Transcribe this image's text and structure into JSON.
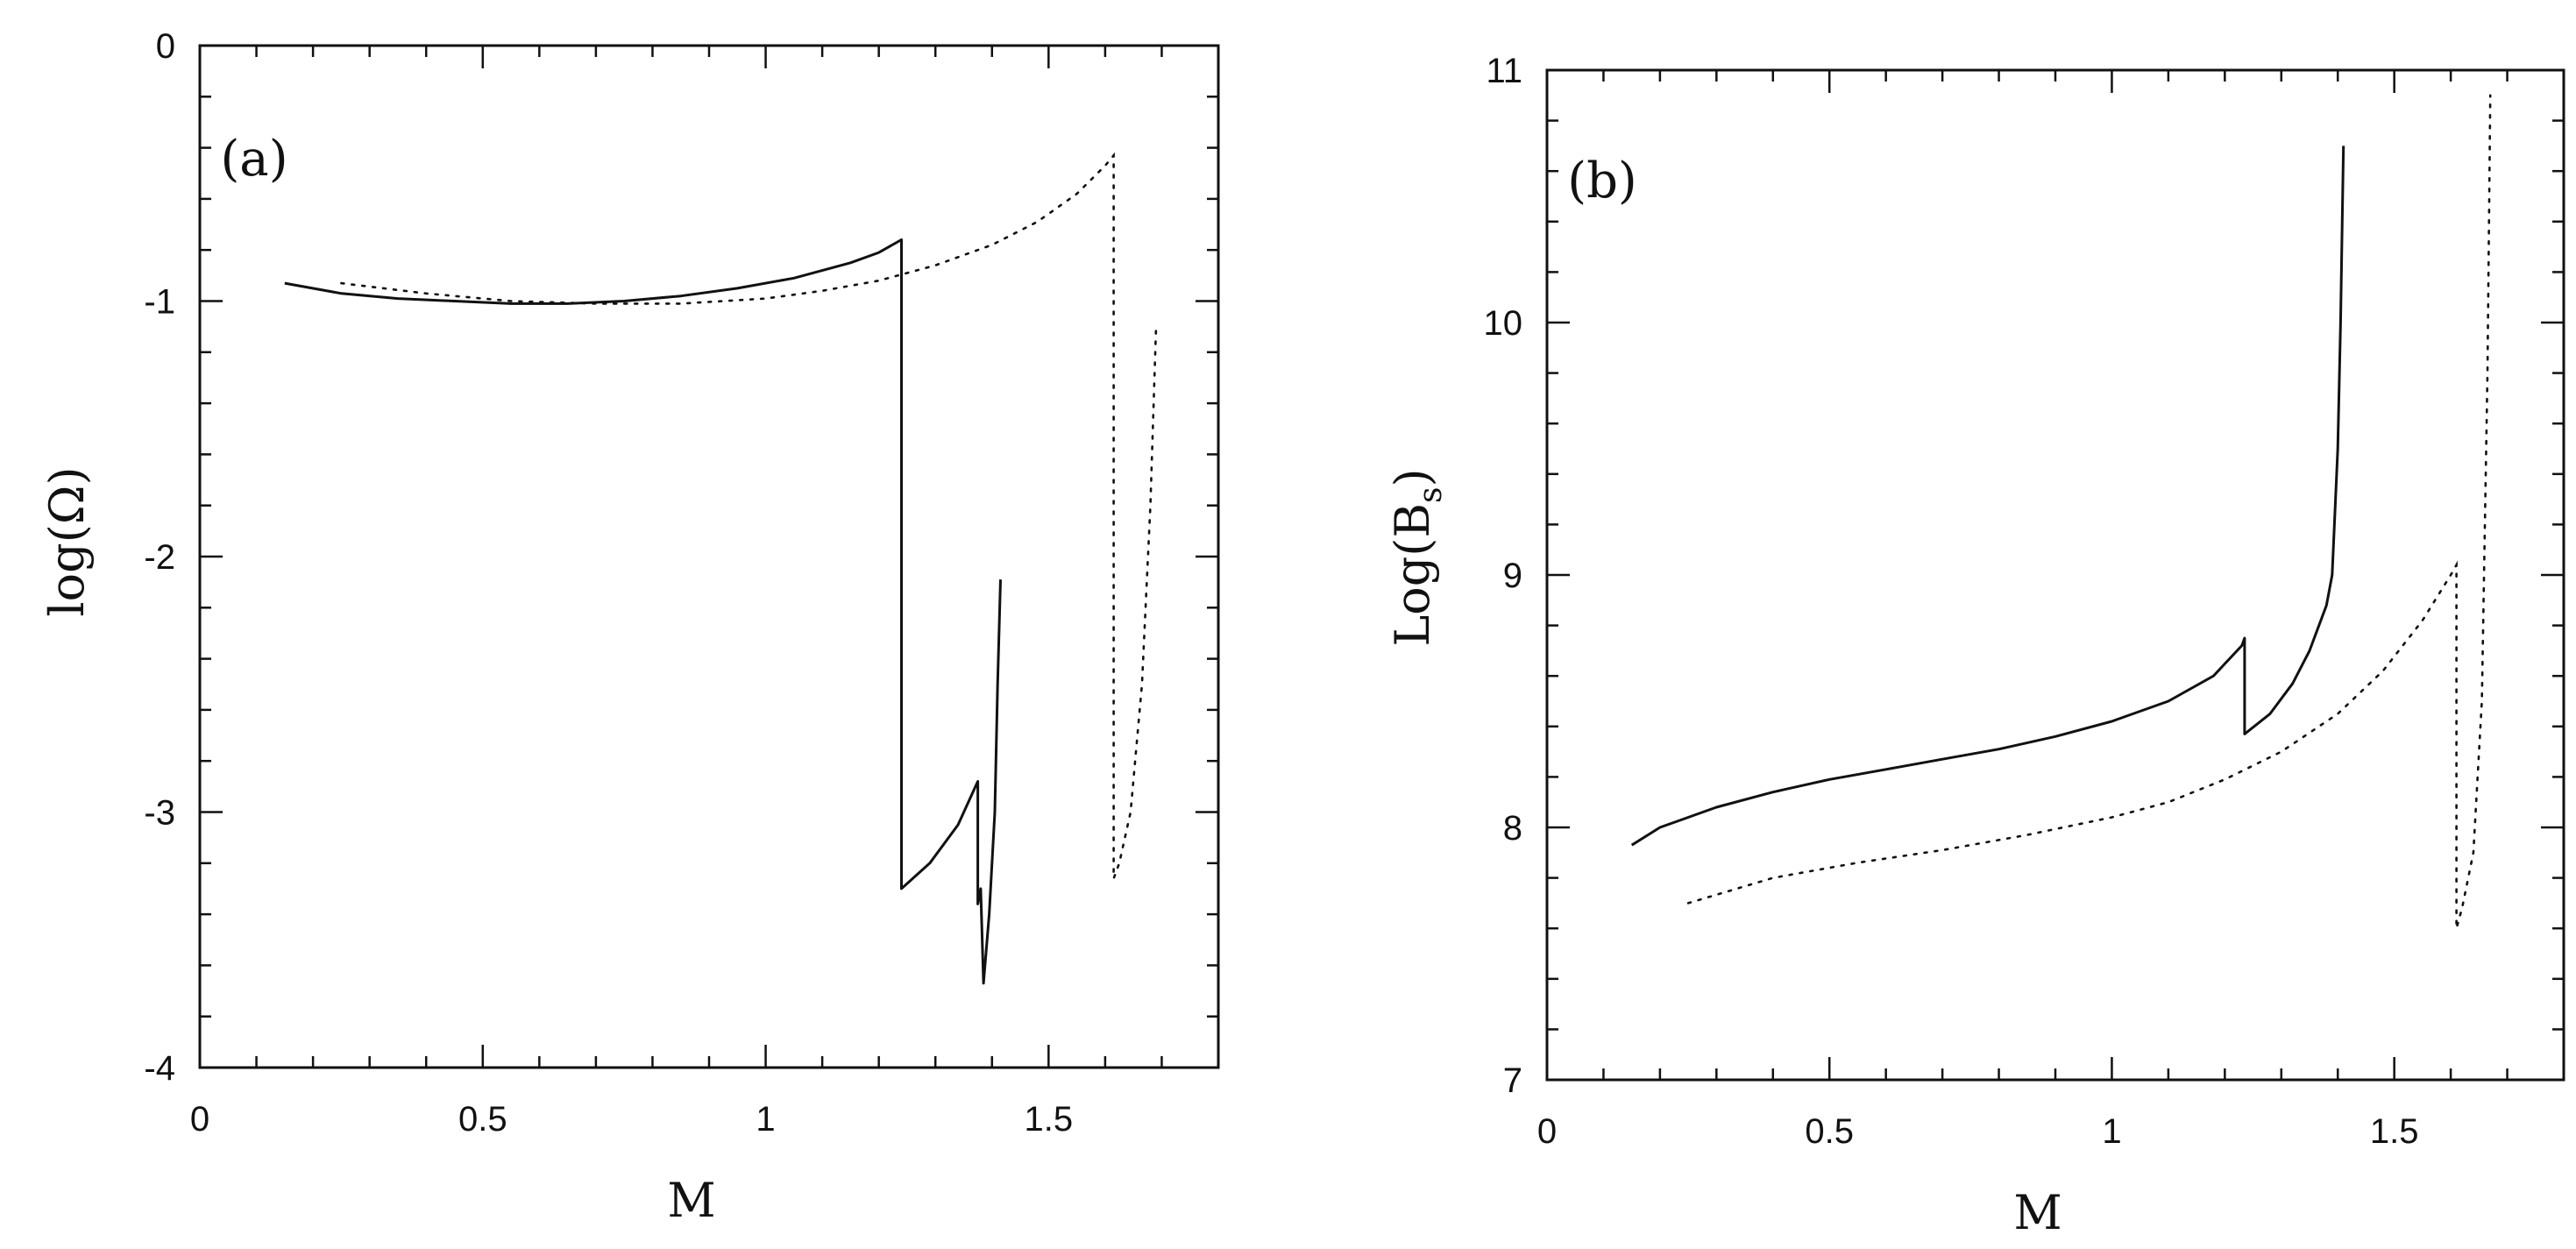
{
  "chart_data": [
    {
      "type": "line",
      "panel_label": "(a)",
      "xlabel": "M",
      "ylabel": "log(Ω)",
      "ylabel_parts": {
        "pre": "log(",
        "symbol": "Ω",
        "sub": "",
        "post": ")"
      },
      "xlim": [
        0,
        1.8
      ],
      "ylim": [
        -4,
        0
      ],
      "xticks": [
        0,
        0.5,
        1,
        1.5
      ],
      "xtick_labels": [
        "0",
        "0.5",
        "1",
        "1.5"
      ],
      "yticks": [
        -4,
        -3,
        -2,
        -1,
        0
      ],
      "ytick_labels": [
        "-4",
        "-3",
        "-2",
        "-1",
        "0"
      ],
      "x_minor_step": 0.1,
      "y_minor_step": 0.2,
      "series": [
        {
          "name": "solid",
          "style": "solid",
          "points": [
            [
              0.15,
              -0.93
            ],
            [
              0.25,
              -0.97
            ],
            [
              0.35,
              -0.99
            ],
            [
              0.45,
              -1.0
            ],
            [
              0.55,
              -1.01
            ],
            [
              0.65,
              -1.01
            ],
            [
              0.75,
              -1.0
            ],
            [
              0.85,
              -0.98
            ],
            [
              0.95,
              -0.95
            ],
            [
              1.05,
              -0.91
            ],
            [
              1.15,
              -0.85
            ],
            [
              1.2,
              -0.81
            ],
            [
              1.24,
              -0.76
            ],
            [
              1.24,
              -3.3
            ],
            [
              1.29,
              -3.2
            ],
            [
              1.34,
              -3.05
            ],
            [
              1.375,
              -2.88
            ],
            [
              1.375,
              -3.36
            ],
            [
              1.38,
              -3.3
            ],
            [
              1.385,
              -3.67
            ],
            [
              1.395,
              -3.4
            ],
            [
              1.405,
              -3.0
            ],
            [
              1.41,
              -2.5
            ],
            [
              1.415,
              -2.09
            ]
          ]
        },
        {
          "name": "dotted",
          "style": "dotted",
          "points": [
            [
              0.25,
              -0.93
            ],
            [
              0.4,
              -0.97
            ],
            [
              0.55,
              -1.0
            ],
            [
              0.7,
              -1.01
            ],
            [
              0.85,
              -1.01
            ],
            [
              1.0,
              -0.99
            ],
            [
              1.1,
              -0.96
            ],
            [
              1.2,
              -0.92
            ],
            [
              1.3,
              -0.86
            ],
            [
              1.4,
              -0.78
            ],
            [
              1.48,
              -0.69
            ],
            [
              1.55,
              -0.58
            ],
            [
              1.6,
              -0.47
            ],
            [
              1.615,
              -0.43
            ],
            [
              1.615,
              -3.26
            ],
            [
              1.625,
              -3.2
            ],
            [
              1.645,
              -3.0
            ],
            [
              1.665,
              -2.5
            ],
            [
              1.68,
              -1.8
            ],
            [
              1.69,
              -1.1
            ]
          ]
        }
      ]
    },
    {
      "type": "line",
      "panel_label": "(b)",
      "xlabel": "M",
      "ylabel": "Log(Bs)",
      "ylabel_parts": {
        "pre": "Log(",
        "symbol": "B",
        "sub": "s",
        "post": ")"
      },
      "xlim": [
        0,
        1.8
      ],
      "ylim": [
        7,
        11
      ],
      "xticks": [
        0,
        0.5,
        1,
        1.5
      ],
      "xtick_labels": [
        "0",
        "0.5",
        "1",
        "1.5"
      ],
      "yticks": [
        7,
        8,
        9,
        10,
        11
      ],
      "ytick_labels": [
        "7",
        "8",
        "9",
        "10",
        "11"
      ],
      "x_minor_step": 0.1,
      "y_minor_step": 0.2,
      "series": [
        {
          "name": "solid",
          "style": "solid",
          "points": [
            [
              0.15,
              7.93
            ],
            [
              0.2,
              8.0
            ],
            [
              0.3,
              8.08
            ],
            [
              0.4,
              8.14
            ],
            [
              0.5,
              8.19
            ],
            [
              0.6,
              8.23
            ],
            [
              0.7,
              8.27
            ],
            [
              0.8,
              8.31
            ],
            [
              0.9,
              8.36
            ],
            [
              1.0,
              8.42
            ],
            [
              1.1,
              8.5
            ],
            [
              1.18,
              8.6
            ],
            [
              1.23,
              8.72
            ],
            [
              1.235,
              8.75
            ],
            [
              1.235,
              8.37
            ],
            [
              1.28,
              8.45
            ],
            [
              1.32,
              8.57
            ],
            [
              1.35,
              8.7
            ],
            [
              1.37,
              8.82
            ],
            [
              1.38,
              8.88
            ],
            [
              1.39,
              9.0
            ],
            [
              1.4,
              9.5
            ],
            [
              1.405,
              10.0
            ],
            [
              1.41,
              10.7
            ]
          ]
        },
        {
          "name": "dotted",
          "style": "dotted",
          "points": [
            [
              0.25,
              7.7
            ],
            [
              0.4,
              7.8
            ],
            [
              0.55,
              7.86
            ],
            [
              0.7,
              7.91
            ],
            [
              0.85,
              7.97
            ],
            [
              1.0,
              8.04
            ],
            [
              1.1,
              8.1
            ],
            [
              1.2,
              8.19
            ],
            [
              1.3,
              8.3
            ],
            [
              1.4,
              8.45
            ],
            [
              1.48,
              8.62
            ],
            [
              1.55,
              8.82
            ],
            [
              1.6,
              9.0
            ],
            [
              1.61,
              9.04
            ],
            [
              1.61,
              7.6
            ],
            [
              1.62,
              7.68
            ],
            [
              1.64,
              7.9
            ],
            [
              1.655,
              8.5
            ],
            [
              1.665,
              9.8
            ],
            [
              1.67,
              10.9
            ]
          ]
        }
      ]
    }
  ]
}
